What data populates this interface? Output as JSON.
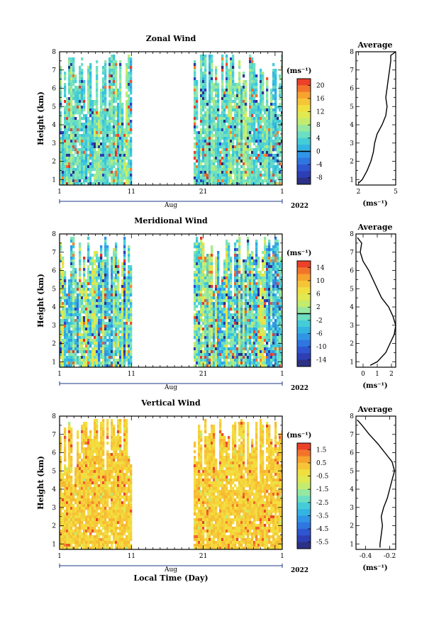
{
  "chart_data": [
    {
      "type": "heatmap",
      "title": "Zonal Wind",
      "ylabel": "Height (km)",
      "y_ticks": [
        "1",
        "2",
        "3",
        "4",
        "5",
        "6",
        "7",
        "8"
      ],
      "ylim": [
        0.7,
        8
      ],
      "x_ticks": [
        "1",
        "11",
        "21",
        "1"
      ],
      "x_month": "Aug",
      "year": "2022",
      "colorbar_unit": "(ms⁻¹)",
      "colorbar_ticks": [
        "20",
        "16",
        "12",
        "8",
        "4",
        "0",
        "-4",
        "-8"
      ],
      "colorbar_range": [
        -10,
        22
      ],
      "data_gap_days": [
        11,
        19.5
      ],
      "dominant_range": [
        2,
        8
      ],
      "profile": {
        "title": "Average",
        "xlabel": "(ms⁻¹)",
        "x_ticks": [
          "2",
          "5"
        ],
        "xlim": [
          1.8,
          5.0
        ],
        "height": [
          0.8,
          1.0,
          1.5,
          2.0,
          2.5,
          3.0,
          3.5,
          4.0,
          4.5,
          5.0,
          5.5,
          6.0,
          6.5,
          7.0,
          7.5,
          7.8,
          8.0
        ],
        "values": [
          2.0,
          2.3,
          2.7,
          3.0,
          3.2,
          3.3,
          3.5,
          3.9,
          4.2,
          4.3,
          4.2,
          4.3,
          4.4,
          4.5,
          4.6,
          4.6,
          5.0
        ]
      }
    },
    {
      "type": "heatmap",
      "title": "Meridional Wind",
      "ylabel": "Height (km)",
      "y_ticks": [
        "1",
        "2",
        "3",
        "4",
        "5",
        "6",
        "7",
        "8"
      ],
      "ylim": [
        0.7,
        8
      ],
      "x_ticks": [
        "1",
        "11",
        "21",
        "1"
      ],
      "x_month": "Aug",
      "year": "2022",
      "colorbar_unit": "(ms⁻¹)",
      "colorbar_ticks": [
        "14",
        "10",
        "6",
        "2",
        "-2",
        "-6",
        "-10",
        "-14"
      ],
      "colorbar_range": [
        -16,
        16
      ],
      "data_gap_days": [
        11,
        19.5
      ],
      "dominant_range": [
        -6,
        4
      ],
      "profile": {
        "title": "Average",
        "xlabel": "(ms⁻¹)",
        "x_ticks": [
          "0",
          "1",
          "2"
        ],
        "xlim": [
          -0.5,
          2.3
        ],
        "height": [
          0.8,
          1.0,
          1.5,
          2.0,
          2.5,
          3.0,
          3.5,
          4.0,
          4.5,
          5.0,
          5.5,
          6.0,
          6.5,
          7.0,
          7.5,
          7.8
        ],
        "values": [
          0.5,
          1.0,
          1.6,
          1.9,
          2.2,
          2.3,
          2.1,
          1.8,
          1.3,
          1.0,
          0.7,
          0.4,
          0.0,
          -0.2,
          -0.1,
          -0.4
        ]
      }
    },
    {
      "type": "heatmap",
      "title": "Vertical Wind",
      "ylabel": "Height (km)",
      "y_ticks": [
        "1",
        "2",
        "3",
        "4",
        "5",
        "6",
        "7",
        "8"
      ],
      "ylim": [
        0.7,
        8
      ],
      "x_ticks": [
        "1",
        "11",
        "21",
        "1"
      ],
      "x_month": "Aug",
      "year": "2022",
      "xlabel": "Local Time (Day)",
      "colorbar_unit": "(ms⁻¹)",
      "colorbar_ticks": [
        "1.5",
        "0.5",
        "-0.5",
        "-1.5",
        "-2.5",
        "-3.5",
        "-4.5",
        "-5.5"
      ],
      "colorbar_range": [
        -6.0,
        2.0
      ],
      "data_gap_days": [
        11,
        19.5
      ],
      "dominant_range": [
        -0.3,
        0.5
      ],
      "profile": {
        "title": "Average",
        "xlabel": "(ms⁻¹)",
        "x_ticks": [
          "-0.4",
          "-0.2"
        ],
        "xlim": [
          -0.48,
          -0.15
        ],
        "height": [
          0.8,
          1.0,
          1.5,
          2.0,
          2.5,
          3.0,
          3.5,
          4.0,
          4.5,
          5.0,
          5.5,
          6.0,
          6.5,
          7.0,
          7.5,
          7.8
        ],
        "values": [
          -0.28,
          -0.28,
          -0.27,
          -0.26,
          -0.27,
          -0.25,
          -0.22,
          -0.2,
          -0.18,
          -0.16,
          -0.18,
          -0.24,
          -0.3,
          -0.37,
          -0.43,
          -0.47
        ]
      }
    }
  ]
}
